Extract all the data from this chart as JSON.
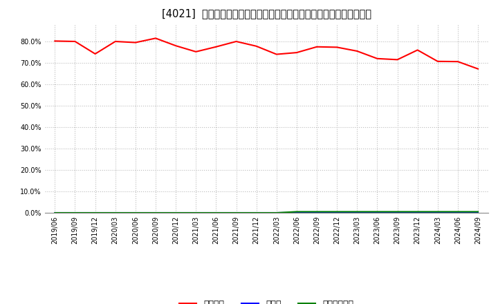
{
  "title": "[4021]  自己資本、のれん、繰延税金資産の総資産に対する比率の推移",
  "x_labels": [
    "2019/06",
    "2019/09",
    "2019/12",
    "2020/03",
    "2020/06",
    "2020/09",
    "2020/12",
    "2021/03",
    "2021/06",
    "2021/09",
    "2021/12",
    "2022/03",
    "2022/06",
    "2022/09",
    "2022/12",
    "2023/03",
    "2023/06",
    "2023/09",
    "2023/12",
    "2024/03",
    "2024/06",
    "2024/09"
  ],
  "equity_ratio": [
    0.802,
    0.8,
    0.742,
    0.8,
    0.795,
    0.815,
    0.78,
    0.752,
    0.775,
    0.8,
    0.778,
    0.74,
    0.748,
    0.775,
    0.773,
    0.755,
    0.72,
    0.715,
    0.76,
    0.707,
    0.706,
    0.672
  ],
  "goodwill_ratio": [
    0.0,
    0.0,
    0.0,
    0.0,
    0.0,
    0.0,
    0.0,
    0.0,
    0.0,
    0.0,
    0.0,
    0.0,
    0.001,
    0.001,
    0.001,
    0.001,
    0.001,
    0.001,
    0.001,
    0.001,
    0.001,
    0.001
  ],
  "deferred_tax_ratio": [
    0.0,
    0.0,
    0.0,
    0.0,
    0.0,
    0.0,
    0.0,
    0.0,
    0.0,
    0.0,
    0.0,
    0.0,
    0.005,
    0.005,
    0.005,
    0.005,
    0.005,
    0.005,
    0.005,
    0.005,
    0.005,
    0.005
  ],
  "equity_color": "#ff0000",
  "goodwill_color": "#0000ff",
  "deferred_tax_color": "#008000",
  "background_color": "#ffffff",
  "grid_color": "#bbbbbb",
  "ylim": [
    0.0,
    0.88
  ],
  "yticks": [
    0.0,
    0.1,
    0.2,
    0.3,
    0.4,
    0.5,
    0.6,
    0.7,
    0.8
  ],
  "legend_labels": [
    "自己資本",
    "のれん",
    "繰延税金資産"
  ],
  "title_fontsize": 10.5,
  "tick_fontsize": 7
}
